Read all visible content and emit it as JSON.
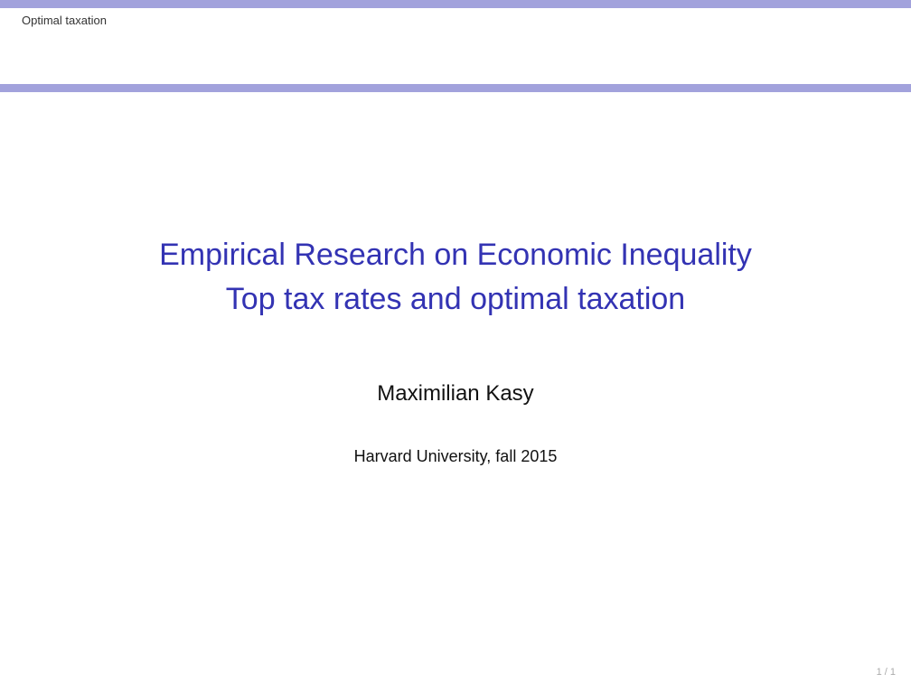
{
  "header": {
    "section_title": "Optimal taxation"
  },
  "title_slide": {
    "title": "Empirical Research on Economic Inequality",
    "subtitle": "Top tax rates and optimal taxation",
    "author": "Maximilian Kasy",
    "institute": "Harvard University, fall 2015"
  },
  "footer": {
    "page_number": "1 / 1"
  },
  "colors": {
    "accent_bar": "#a2a2dc",
    "title_text": "#3333b3",
    "body_text": "#111111"
  }
}
